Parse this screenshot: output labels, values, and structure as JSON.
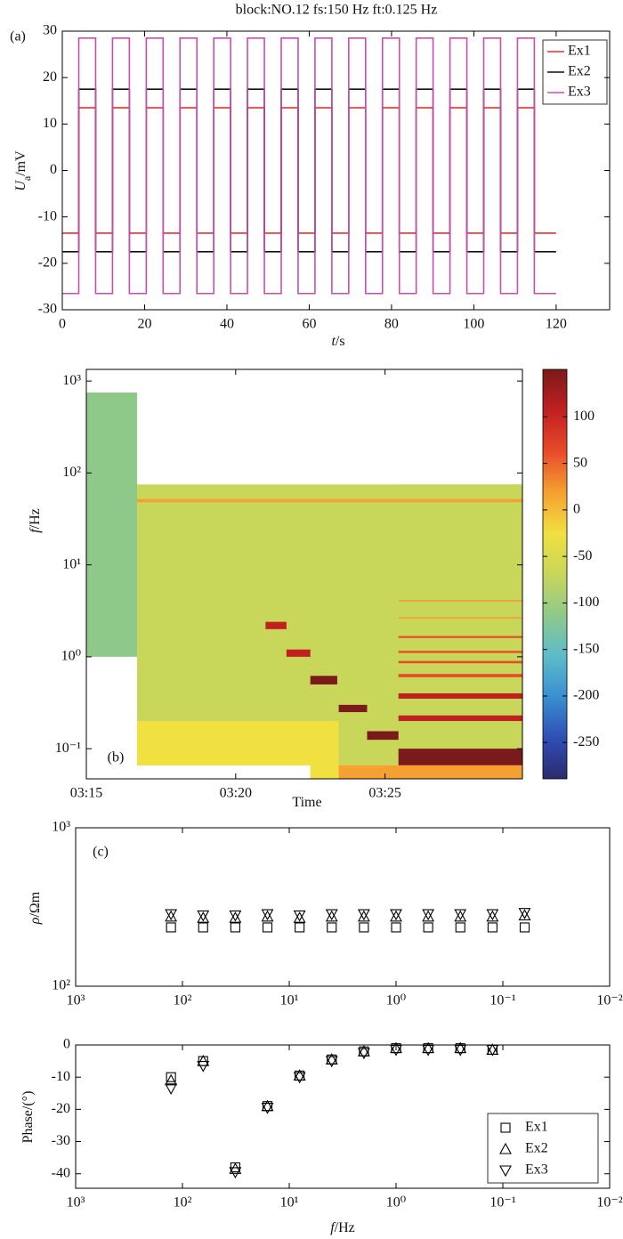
{
  "chart_data": [
    {
      "type": "line",
      "title": "block:NO.12 fs:150 Hz ft:0.125 Hz",
      "annotation": "(a)",
      "xlabel": [
        "t",
        "/s"
      ],
      "ylabel": [
        "U",
        "a",
        "/mV"
      ],
      "xlim": [
        0,
        133
      ],
      "xticks": [
        0,
        20,
        40,
        60,
        80,
        100,
        120
      ],
      "ylim": [
        -30,
        30
      ],
      "yticks": [
        -30,
        -20,
        -10,
        0,
        10,
        20,
        30
      ],
      "legend": "upper right",
      "x": [
        0,
        4,
        4,
        8.1,
        8.1,
        12.2,
        12.2,
        16.3,
        16.3,
        20.4,
        20.4,
        24.5,
        24.5,
        28.6,
        28.6,
        32.7,
        32.7,
        36.8,
        36.8,
        40.9,
        40.9,
        45,
        45,
        49.1,
        49.1,
        53.2,
        53.2,
        57.3,
        57.3,
        61.4,
        61.4,
        65.5,
        65.5,
        69.6,
        69.6,
        73.7,
        73.7,
        77.8,
        77.8,
        81.9,
        81.9,
        86,
        86,
        90.1,
        90.1,
        94.2,
        94.2,
        98.3,
        98.3,
        102.4,
        102.4,
        106.5,
        106.5,
        110.6,
        110.6,
        114.7,
        114.7,
        120
      ],
      "series": [
        {
          "name": "Ex1",
          "color": "#e8312a",
          "values": [
            -13.5,
            -13.5,
            13.5,
            13.5,
            -13.5,
            -13.5,
            13.5,
            13.5,
            -13.5,
            -13.5,
            13.5,
            13.5,
            -13.5,
            -13.5,
            13.5,
            13.5,
            -13.5,
            -13.5,
            13.5,
            13.5,
            -13.5,
            -13.5,
            13.5,
            13.5,
            -13.5,
            -13.5,
            13.5,
            13.5,
            -13.5,
            -13.5,
            13.5,
            13.5,
            -13.5,
            -13.5,
            13.5,
            13.5,
            -13.5,
            -13.5,
            13.5,
            13.5,
            -13.5,
            -13.5,
            13.5,
            13.5,
            -13.5,
            -13.5,
            13.5,
            13.5,
            -13.5,
            -13.5,
            13.5,
            13.5,
            -13.5,
            -13.5,
            13.5,
            13.5,
            -13.5,
            -13.5
          ]
        },
        {
          "name": "Ex2",
          "color": "#111111",
          "values": [
            -17.5,
            -17.5,
            17.5,
            17.5,
            -17.5,
            -17.5,
            17.5,
            17.5,
            -17.5,
            -17.5,
            17.5,
            17.5,
            -17.5,
            -17.5,
            17.5,
            17.5,
            -17.5,
            -17.5,
            17.5,
            17.5,
            -17.5,
            -17.5,
            17.5,
            17.5,
            -17.5,
            -17.5,
            17.5,
            17.5,
            -17.5,
            -17.5,
            17.5,
            17.5,
            -17.5,
            -17.5,
            17.5,
            17.5,
            -17.5,
            -17.5,
            17.5,
            17.5,
            -17.5,
            -17.5,
            17.5,
            17.5,
            -17.5,
            -17.5,
            17.5,
            17.5,
            -17.5,
            -17.5,
            17.5,
            17.5,
            -17.5,
            -17.5,
            17.5,
            17.5,
            -17.5,
            -17.5
          ]
        },
        {
          "name": "Ex3",
          "color": "#c44fb0",
          "values": [
            -26.5,
            -26.5,
            28.5,
            28.5,
            -26.5,
            -26.5,
            28.5,
            28.5,
            -26.5,
            -26.5,
            28.5,
            28.5,
            -26.5,
            -26.5,
            28.5,
            28.5,
            -26.5,
            -26.5,
            28.5,
            28.5,
            -26.5,
            -26.5,
            28.5,
            28.5,
            -26.5,
            -26.5,
            28.5,
            28.5,
            -26.5,
            -26.5,
            28.5,
            28.5,
            -26.5,
            -26.5,
            28.5,
            28.5,
            -26.5,
            -26.5,
            28.5,
            28.5,
            -26.5,
            -26.5,
            28.5,
            28.5,
            -26.5,
            -26.5,
            28.5,
            28.5,
            -26.5,
            -26.5,
            28.5,
            28.5,
            -26.5,
            -26.5,
            28.5,
            28.5,
            -26.5,
            -26.5
          ]
        }
      ]
    },
    {
      "type": "heatmap",
      "annotation": "(b)",
      "xlabel": [
        "Time"
      ],
      "ylabel": [
        "f",
        "/Hz"
      ],
      "xlim": [
        195,
        209.6
      ],
      "xticks": [
        {
          "value": 195,
          "label": "03:15"
        },
        {
          "value": 200,
          "label": "03:20"
        },
        {
          "value": 205,
          "label": "03:25"
        }
      ],
      "ylim": [
        0.047,
        1340
      ],
      "log_y": true,
      "yticks": [
        {
          "value": 0.1,
          "label": "10⁻¹"
        },
        {
          "value": 1,
          "label": "10⁰"
        },
        {
          "value": 10,
          "label": "10¹"
        },
        {
          "value": 100,
          "label": "10²"
        },
        {
          "value": 1000,
          "label": "10³"
        }
      ],
      "clim": [
        -289,
        151
      ],
      "cticks": [
        -250,
        -200,
        -150,
        -100,
        -50,
        0,
        50,
        100
      ],
      "colormap": [
        "#2b2a6e",
        "#2f4fb5",
        "#3a8fd0",
        "#5cbcc9",
        "#8fc98a",
        "#c8d65a",
        "#f0e040",
        "#f5a030",
        "#e84a2a",
        "#c02020",
        "#7a1a1a"
      ],
      "cells": [
        {
          "t": [
            195,
            196.7
          ],
          "f": [
            1,
            750
          ],
          "value": -125
        },
        {
          "t": [
            196.7,
            209.6
          ],
          "f": [
            0.066,
            75
          ],
          "value": -85
        },
        {
          "t": [
            196.7,
            203.45
          ],
          "f": [
            0.066,
            0.2
          ],
          "value": -40
        },
        {
          "t": [
            202.5,
            205.45
          ],
          "f": [
            0.047,
            0.066
          ],
          "value": -15
        },
        {
          "t": [
            203.45,
            209.6
          ],
          "f": [
            0.047,
            0.066
          ],
          "value": 10
        },
        {
          "t": [
            205.45,
            209.6
          ],
          "f": [
            0.1,
            75
          ],
          "value": -55
        },
        {
          "t": [
            205.45,
            209.6
          ],
          "f": [
            0.066,
            0.1
          ],
          "value": 140
        },
        {
          "t": [
            196.7,
            209.6
          ],
          "f": [
            48,
            52
          ],
          "value": 40
        },
        {
          "t": [
            201,
            201.7
          ],
          "f": [
            2,
            2.4
          ],
          "value": 110
        },
        {
          "t": [
            201.7,
            202.5
          ],
          "f": [
            1,
            1.2
          ],
          "value": 120
        },
        {
          "t": [
            202.5,
            203.4
          ],
          "f": [
            0.5,
            0.62
          ],
          "value": 130
        },
        {
          "t": [
            203.45,
            204.4
          ],
          "f": [
            0.25,
            0.3
          ],
          "value": 140
        },
        {
          "t": [
            204.4,
            205.45
          ],
          "f": [
            0.125,
            0.155
          ],
          "value": 140
        },
        {
          "t": [
            205.45,
            209.6
          ],
          "f": [
            0.2,
            0.23
          ],
          "value": 100
        },
        {
          "t": [
            205.45,
            209.6
          ],
          "f": [
            0.35,
            0.4
          ],
          "value": 90
        },
        {
          "t": [
            205.45,
            209.6
          ],
          "f": [
            0.6,
            0.65
          ],
          "value": 80
        },
        {
          "t": [
            205.45,
            209.6
          ],
          "f": [
            0.85,
            0.9
          ],
          "value": 70
        },
        {
          "t": [
            205.45,
            209.6
          ],
          "f": [
            1.1,
            1.16
          ],
          "value": 60
        },
        {
          "t": [
            205.45,
            209.6
          ],
          "f": [
            1.6,
            1.68
          ],
          "value": 50
        },
        {
          "t": [
            205.45,
            209.6
          ],
          "f": [
            2.6,
            2.7
          ],
          "value": 40
        },
        {
          "t": [
            205.45,
            209.6
          ],
          "f": [
            4,
            4.15
          ],
          "value": 30
        }
      ]
    },
    {
      "type": "scatter",
      "annotation": "(c)",
      "ylabel": [
        "ρ",
        "/Ωm"
      ],
      "xlim": [
        1000,
        0.01
      ],
      "log_x": true,
      "xticks": [
        {
          "value": 1000,
          "label": "10³"
        },
        {
          "value": 100,
          "label": "10²"
        },
        {
          "value": 10,
          "label": "10¹"
        },
        {
          "value": 1,
          "label": "10⁰"
        },
        {
          "value": 0.1,
          "label": "10⁻¹"
        },
        {
          "value": 0.01,
          "label": "10⁻²"
        }
      ],
      "ylim": [
        100,
        1000
      ],
      "log_y": true,
      "yticks": [
        {
          "value": 100,
          "label": "10²"
        },
        {
          "value": 1000,
          "label": "10³"
        }
      ],
      "x": [
        128,
        64,
        32,
        16,
        8,
        4,
        2,
        1,
        0.5,
        0.25,
        0.125,
        0.0625
      ],
      "series": [
        {
          "name": "Ex1",
          "marker": "square",
          "color": "#000000",
          "values": [
            235,
            235,
            235,
            235,
            235,
            235,
            235,
            235,
            235,
            235,
            235,
            235
          ]
        },
        {
          "name": "Ex2",
          "marker": "triangle",
          "color": "#000000",
          "values": [
            275,
            270,
            270,
            275,
            270,
            275,
            275,
            275,
            275,
            275,
            275,
            280
          ]
        },
        {
          "name": "Ex3",
          "marker": "triangle-down",
          "color": "#000000",
          "values": [
            285,
            280,
            280,
            285,
            280,
            285,
            285,
            285,
            285,
            285,
            285,
            290
          ]
        }
      ]
    },
    {
      "type": "scatter",
      "xlabel": [
        "f",
        "/Hz"
      ],
      "ylabel": [
        "Phase/(°)"
      ],
      "xlim": [
        1000,
        0.01
      ],
      "log_x": true,
      "xticks": [
        {
          "value": 1000,
          "label": "10³"
        },
        {
          "value": 100,
          "label": "10²"
        },
        {
          "value": 10,
          "label": "10¹"
        },
        {
          "value": 1,
          "label": "10⁰"
        },
        {
          "value": 0.1,
          "label": "10⁻¹"
        },
        {
          "value": 0.01,
          "label": "10⁻²"
        }
      ],
      "ylim": [
        -44.5,
        0
      ],
      "yticks": [
        -40,
        -30,
        -20,
        -10,
        0
      ],
      "legend": "lower right",
      "x": [
        128,
        64,
        32,
        16,
        8,
        4,
        2,
        1,
        0.5,
        0.25,
        0.125
      ],
      "series": [
        {
          "name": "Ex1",
          "marker": "square",
          "color": "#000000",
          "values": [
            -10,
            -5,
            -38,
            -19,
            -9.5,
            -4.5,
            -2,
            -1,
            -1,
            -1,
            -1.5
          ]
        },
        {
          "name": "Ex2",
          "marker": "triangle",
          "color": "#000000",
          "values": [
            -11,
            -5,
            -38.5,
            -19,
            -9.5,
            -4.5,
            -2,
            -1,
            -1,
            -1,
            -1.5
          ]
        },
        {
          "name": "Ex3",
          "marker": "triangle-down",
          "color": "#000000",
          "values": [
            -13.5,
            -6.5,
            -39.5,
            -19.5,
            -10,
            -5,
            -2.5,
            -1.5,
            -1.5,
            -1.5,
            -1.5
          ]
        }
      ]
    }
  ]
}
